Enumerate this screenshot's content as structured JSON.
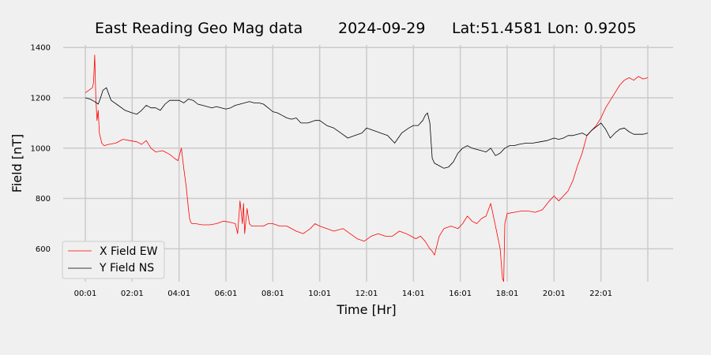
{
  "chart_data": {
    "type": "line",
    "title": "East Reading Geo Mag data",
    "date": "2024-09-29",
    "location": "Lat:51.4581  Lon: 0.9205",
    "xlabel": "Time  [Hr]",
    "ylabel": "Field  [nT]",
    "x_unit": "hours",
    "xlim": [
      0.0,
      24.0
    ],
    "ylim": [
      460,
      1410
    ],
    "x_ticks": [
      {
        "x": 0.0,
        "label": "00:01"
      },
      {
        "x": 2.0,
        "label": "02:01"
      },
      {
        "x": 4.0,
        "label": "04:01"
      },
      {
        "x": 6.0,
        "label": "06:01"
      },
      {
        "x": 8.0,
        "label": "08:01"
      },
      {
        "x": 10.0,
        "label": "10:01"
      },
      {
        "x": 12.0,
        "label": "12:01"
      },
      {
        "x": 14.0,
        "label": "14:01"
      },
      {
        "x": 16.0,
        "label": "16:01"
      },
      {
        "x": 18.0,
        "label": "18:01"
      },
      {
        "x": 20.0,
        "label": "20:01"
      },
      {
        "x": 22.0,
        "label": "22:01"
      },
      {
        "x": 24.0,
        "label": ""
      }
    ],
    "y_ticks": [
      600,
      800,
      1000,
      1200,
      1400
    ],
    "grid": true,
    "legend_position": "lower-left",
    "series": [
      {
        "name": "X Field EW",
        "color": "#ff0000",
        "x": [
          0.0,
          0.15,
          0.3,
          0.35,
          0.4,
          0.45,
          0.5,
          0.55,
          0.6,
          0.7,
          0.8,
          1.0,
          1.3,
          1.6,
          1.9,
          2.2,
          2.4,
          2.6,
          2.8,
          3.0,
          3.3,
          3.6,
          3.8,
          3.95,
          4.1,
          4.2,
          4.3,
          4.4,
          4.45,
          4.5,
          4.55,
          4.7,
          5.0,
          5.3,
          5.6,
          5.9,
          6.2,
          6.4,
          6.5,
          6.6,
          6.7,
          6.75,
          6.8,
          6.9,
          7.0,
          7.1,
          7.3,
          7.6,
          7.8,
          8.0,
          8.3,
          8.6,
          9.0,
          9.3,
          9.6,
          9.8,
          10.0,
          10.3,
          10.6,
          11.0,
          11.3,
          11.6,
          11.9,
          12.2,
          12.5,
          12.8,
          13.1,
          13.4,
          13.7,
          13.9,
          14.1,
          14.3,
          14.5,
          14.7,
          14.8,
          14.9,
          15.1,
          15.3,
          15.6,
          15.9,
          16.1,
          16.3,
          16.5,
          16.7,
          16.9,
          17.1,
          17.3,
          17.5,
          17.7,
          17.8,
          17.85,
          17.9,
          17.95,
          18.0,
          18.3,
          18.6,
          18.9,
          19.2,
          19.5,
          19.8,
          20.0,
          20.2,
          20.4,
          20.5,
          20.6,
          20.8,
          21.0,
          21.2,
          21.4,
          21.6,
          21.8,
          22.0,
          22.2,
          22.4,
          22.6,
          22.8,
          23.0,
          23.1,
          23.2,
          23.4,
          23.6,
          23.8,
          24.0
        ],
        "values": [
          1220,
          1230,
          1240,
          1260,
          1370,
          1200,
          1110,
          1150,
          1060,
          1020,
          1010,
          1015,
          1020,
          1035,
          1030,
          1025,
          1015,
          1030,
          1000,
          985,
          990,
          975,
          960,
          950,
          1000,
          920,
          850,
          760,
          720,
          705,
          700,
          700,
          695,
          695,
          700,
          710,
          705,
          700,
          660,
          790,
          700,
          780,
          660,
          760,
          700,
          690,
          690,
          690,
          700,
          700,
          690,
          690,
          670,
          660,
          680,
          700,
          690,
          680,
          670,
          680,
          660,
          640,
          630,
          650,
          660,
          650,
          650,
          670,
          660,
          650,
          640,
          650,
          630,
          600,
          590,
          575,
          650,
          680,
          690,
          680,
          700,
          730,
          710,
          700,
          720,
          730,
          780,
          690,
          600,
          480,
          470,
          700,
          720,
          740,
          745,
          750,
          750,
          745,
          755,
          790,
          810,
          790,
          810,
          820,
          830,
          870,
          930,
          980,
          1050,
          1070,
          1090,
          1120,
          1160,
          1190,
          1220,
          1250,
          1270,
          1275,
          1280,
          1270,
          1285,
          1275,
          1280
        ]
      },
      {
        "name": "Y Field NS",
        "color": "#000000",
        "x": [
          0.0,
          0.2,
          0.4,
          0.55,
          0.65,
          0.75,
          0.9,
          1.1,
          1.4,
          1.7,
          2.0,
          2.2,
          2.4,
          2.6,
          2.8,
          3.0,
          3.2,
          3.4,
          3.6,
          3.8,
          4.0,
          4.2,
          4.4,
          4.6,
          4.8,
          5.0,
          5.2,
          5.4,
          5.6,
          5.8,
          6.0,
          6.2,
          6.4,
          6.6,
          6.8,
          7.0,
          7.2,
          7.4,
          7.6,
          7.8,
          8.0,
          8.2,
          8.4,
          8.6,
          8.8,
          9.0,
          9.2,
          9.5,
          9.8,
          10.0,
          10.3,
          10.6,
          10.9,
          11.2,
          11.5,
          11.8,
          12.0,
          12.3,
          12.6,
          12.9,
          13.2,
          13.5,
          13.8,
          14.0,
          14.2,
          14.4,
          14.5,
          14.6,
          14.7,
          14.8,
          14.9,
          15.1,
          15.3,
          15.5,
          15.7,
          15.9,
          16.1,
          16.3,
          16.5,
          16.7,
          16.9,
          17.1,
          17.3,
          17.5,
          17.7,
          17.9,
          18.1,
          18.3,
          18.5,
          18.8,
          19.1,
          19.4,
          19.7,
          20.0,
          20.2,
          20.4,
          20.6,
          20.8,
          21.0,
          21.2,
          21.4,
          21.6,
          21.8,
          22.0,
          22.2,
          22.4,
          22.6,
          22.8,
          23.0,
          23.2,
          23.4,
          23.6,
          23.8,
          24.0
        ],
        "values": [
          1200,
          1195,
          1185,
          1175,
          1200,
          1230,
          1240,
          1190,
          1170,
          1150,
          1140,
          1135,
          1150,
          1170,
          1160,
          1160,
          1150,
          1175,
          1190,
          1190,
          1190,
          1180,
          1195,
          1190,
          1175,
          1170,
          1165,
          1160,
          1165,
          1160,
          1155,
          1160,
          1170,
          1175,
          1180,
          1185,
          1180,
          1180,
          1175,
          1160,
          1145,
          1140,
          1130,
          1120,
          1115,
          1120,
          1100,
          1100,
          1110,
          1110,
          1090,
          1080,
          1060,
          1040,
          1050,
          1060,
          1080,
          1070,
          1060,
          1050,
          1020,
          1060,
          1080,
          1090,
          1090,
          1110,
          1130,
          1140,
          1100,
          960,
          940,
          930,
          920,
          925,
          945,
          980,
          1000,
          1010,
          1000,
          995,
          990,
          985,
          1000,
          970,
          980,
          1000,
          1010,
          1010,
          1015,
          1020,
          1020,
          1025,
          1030,
          1040,
          1035,
          1040,
          1050,
          1050,
          1055,
          1060,
          1050,
          1070,
          1085,
          1100,
          1075,
          1040,
          1060,
          1075,
          1080,
          1065,
          1055,
          1055,
          1055,
          1060
        ]
      }
    ]
  }
}
